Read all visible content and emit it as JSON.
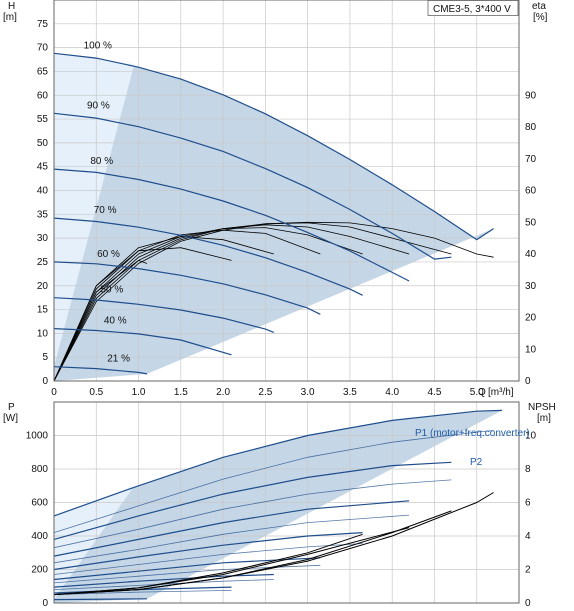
{
  "chart_data": [
    {
      "type": "line",
      "model_label": "CME3-5, 3*400 V",
      "ylabel_left": "H",
      "ylabel_left_unit": "[m]",
      "ylabel_right": "eta",
      "ylabel_right_unit": "[%]",
      "xlabel": "Q",
      "xlabel_unit": "[m³/h]",
      "xlim": [
        0,
        5.5
      ],
      "ylim": [
        0,
        80
      ],
      "y2lim": [
        0,
        120
      ],
      "x_ticks": [
        "0",
        "0.5",
        "1.0",
        "1.5",
        "2.0",
        "2.5",
        "3.0",
        "3.5",
        "4.0",
        "4.5",
        "5.0"
      ],
      "y_ticks": [
        "0",
        "5",
        "10",
        "15",
        "20",
        "25",
        "30",
        "35",
        "40",
        "45",
        "50",
        "55",
        "60",
        "65",
        "70",
        "75"
      ],
      "y2_ticks": [
        "0",
        "10",
        "20",
        "30",
        "40",
        "50",
        "60",
        "70",
        "80",
        "90"
      ],
      "grid": true,
      "colors": {
        "curve": "#1f4e8c",
        "envelope": "#c5d6e6",
        "envelope_light": "#e6f0fa",
        "efficiency": "#000000"
      },
      "speed_curves": [
        {
          "label": "100 %",
          "x": [
            0,
            0.5,
            1.0,
            1.5,
            2.0,
            2.5,
            3.0,
            3.5,
            4.0,
            4.5,
            5.0,
            5.2
          ],
          "y": [
            68.8,
            67.8,
            65.9,
            63.4,
            60.1,
            56.1,
            51.5,
            46.5,
            41.2,
            35.6,
            29.7,
            32.0
          ]
        },
        {
          "label": "90 %",
          "x": [
            0,
            0.5,
            1.0,
            1.5,
            2.0,
            2.5,
            3.0,
            3.5,
            4.0,
            4.5,
            4.7
          ],
          "y": [
            56.2,
            55.2,
            53.4,
            51.0,
            48.2,
            44.6,
            40.6,
            36.0,
            31.0,
            25.6,
            26.0
          ]
        },
        {
          "label": "80 %",
          "x": [
            0,
            0.5,
            1.0,
            1.5,
            2.0,
            2.5,
            3.0,
            3.5,
            4.0,
            4.2
          ],
          "y": [
            44.5,
            43.8,
            42.3,
            40.3,
            37.8,
            34.8,
            31.2,
            27.3,
            22.8,
            21.0
          ]
        },
        {
          "label": "70 %",
          "x": [
            0,
            0.5,
            1.0,
            1.5,
            2.0,
            2.5,
            3.0,
            3.5,
            3.65
          ],
          "y": [
            34.2,
            33.5,
            32.3,
            30.6,
            28.5,
            25.9,
            22.8,
            19.3,
            18.0
          ]
        },
        {
          "label": "60 %",
          "x": [
            0,
            0.5,
            1.0,
            1.5,
            2.0,
            2.5,
            3.0,
            3.15
          ],
          "y": [
            25.0,
            24.6,
            23.6,
            22.2,
            20.4,
            18.1,
            15.3,
            14.0
          ]
        },
        {
          "label": "50 %",
          "x": [
            0,
            0.5,
            1.0,
            1.5,
            2.0,
            2.5,
            2.6
          ],
          "y": [
            17.5,
            17.0,
            16.1,
            14.9,
            13.2,
            10.9,
            10.2
          ]
        },
        {
          "label": "40 %",
          "x": [
            0,
            0.5,
            1.0,
            1.5,
            2.1
          ],
          "y": [
            11.0,
            10.6,
            9.9,
            8.6,
            5.5
          ]
        },
        {
          "label": "21 %",
          "x": [
            0,
            0.5,
            1.0,
            1.1
          ],
          "y": [
            3.0,
            2.6,
            1.8,
            1.5
          ]
        }
      ],
      "efficiency_curves": [
        {
          "x": [
            0,
            0.5,
            1.0,
            1.5,
            2.0,
            2.5,
            3.0,
            3.5,
            4.0,
            4.5,
            5.0,
            5.2
          ],
          "y": [
            0,
            25,
            37,
            44,
            47.5,
            49.5,
            50,
            49.8,
            48,
            45,
            40,
            39
          ]
        },
        {
          "x": [
            0,
            0.5,
            1.0,
            1.5,
            2.0,
            2.5,
            3.0,
            3.5,
            4.0,
            4.7
          ],
          "y": [
            0,
            26,
            38,
            44.5,
            48,
            49.5,
            49.8,
            48.5,
            45,
            40
          ]
        },
        {
          "x": [
            0,
            0.5,
            1.0,
            1.5,
            2.0,
            2.5,
            3.0,
            3.5,
            4.2
          ],
          "y": [
            0,
            27,
            39,
            45,
            48,
            49.2,
            48.5,
            45.5,
            40
          ]
        },
        {
          "x": [
            0,
            0.5,
            1.0,
            1.5,
            2.0,
            2.5,
            3.0,
            3.65
          ],
          "y": [
            0,
            28,
            40,
            45.5,
            48,
            48.3,
            46,
            40
          ]
        },
        {
          "x": [
            0,
            0.5,
            1.0,
            1.5,
            2.0,
            2.5,
            3.15
          ],
          "y": [
            0,
            29,
            41,
            46,
            47.5,
            46.5,
            40
          ]
        },
        {
          "x": [
            0,
            0.5,
            1.0,
            1.5,
            2.0,
            2.6
          ],
          "y": [
            0,
            30,
            42,
            45.5,
            44.5,
            40
          ]
        },
        {
          "x": [
            0,
            0.5,
            1.0,
            1.5,
            2.1
          ],
          "y": [
            0,
            30,
            41,
            42,
            38
          ]
        },
        {
          "x": [
            0,
            0.5,
            1.0,
            1.1
          ],
          "y": [
            0,
            28,
            38,
            37
          ]
        }
      ]
    },
    {
      "type": "line",
      "ylabel_left": "P",
      "ylabel_left_unit": "[W]",
      "ylabel_right": "NPSH",
      "ylabel_right_unit": "[m]",
      "xlim": [
        0,
        5.5
      ],
      "ylim": [
        0,
        1200
      ],
      "y2lim": [
        0,
        12
      ],
      "y_ticks": [
        "0",
        "200",
        "400",
        "600",
        "800",
        "1000"
      ],
      "y2_ticks": [
        "0",
        "2",
        "4",
        "6",
        "8",
        "10"
      ],
      "grid": true,
      "series_labels": [
        "P1 (motor+freq.converter)",
        "P2"
      ],
      "colors": {
        "curve": "#1f4e8c",
        "envelope": "#c5d6e6",
        "npsh": "#000000",
        "label": "#1f5ca8"
      },
      "p1_curves": [
        {
          "x": [
            0,
            1.0,
            2.0,
            3.0,
            4.0,
            5.0,
            5.3
          ],
          "y": [
            520,
            700,
            870,
            1000,
            1090,
            1145,
            1150
          ]
        },
        {
          "x": [
            0,
            1.0,
            2.0,
            3.0,
            4.0,
            4.7
          ],
          "y": [
            380,
            520,
            650,
            750,
            820,
            840
          ]
        },
        {
          "x": [
            0,
            1.0,
            2.0,
            3.0,
            4.2
          ],
          "y": [
            280,
            380,
            480,
            560,
            610
          ]
        },
        {
          "x": [
            0,
            1.0,
            2.0,
            3.0,
            3.65
          ],
          "y": [
            200,
            275,
            345,
            400,
            420
          ]
        },
        {
          "x": [
            0,
            1.0,
            2.0,
            3.15
          ],
          "y": [
            140,
            190,
            240,
            270
          ]
        },
        {
          "x": [
            0,
            1.0,
            2.0,
            2.6
          ],
          "y": [
            95,
            130,
            160,
            170
          ]
        },
        {
          "x": [
            0,
            1.0,
            2.1
          ],
          "y": [
            60,
            80,
            95
          ]
        },
        {
          "x": [
            0,
            1.1
          ],
          "y": [
            20,
            25
          ]
        }
      ],
      "p2_curves": [
        {
          "x": [
            0,
            1.0,
            2.0,
            3.0,
            4.0,
            5.0,
            5.2
          ],
          "y": [
            420,
            580,
            740,
            870,
            960,
            1020,
            1030
          ]
        },
        {
          "x": [
            0,
            1.0,
            2.0,
            3.0,
            4.0,
            4.7
          ],
          "y": [
            330,
            440,
            560,
            650,
            710,
            735
          ]
        },
        {
          "x": [
            0,
            1.0,
            2.0,
            3.0,
            4.2
          ],
          "y": [
            240,
            320,
            410,
            480,
            525
          ]
        },
        {
          "x": [
            0,
            1.0,
            2.0,
            3.0,
            3.65
          ],
          "y": [
            170,
            230,
            290,
            335,
            355
          ]
        },
        {
          "x": [
            0,
            1.0,
            2.0,
            3.15
          ],
          "y": [
            120,
            160,
            200,
            225
          ]
        },
        {
          "x": [
            0,
            1.0,
            2.0,
            2.6
          ],
          "y": [
            80,
            105,
            130,
            140
          ]
        },
        {
          "x": [
            0,
            1.0,
            2.1
          ],
          "y": [
            50,
            65,
            75
          ]
        }
      ],
      "npsh_curves": [
        {
          "x": [
            0,
            1.0,
            2.0,
            3.0,
            4.0,
            5.0,
            5.2
          ],
          "y": [
            0.5,
            0.8,
            1.5,
            2.5,
            4.0,
            6.0,
            6.6
          ]
        },
        {
          "x": [
            0,
            1.0,
            2.0,
            3.0,
            4.0,
            4.7
          ],
          "y": [
            0.5,
            0.8,
            1.5,
            2.6,
            4.2,
            5.5
          ]
        },
        {
          "x": [
            0,
            1.0,
            2.0,
            3.0,
            4.2
          ],
          "y": [
            0.5,
            0.9,
            1.7,
            2.9,
            4.5
          ]
        },
        {
          "x": [
            0,
            1.0,
            2.0,
            3.0,
            3.65
          ],
          "y": [
            0.5,
            0.9,
            1.8,
            3.0,
            4.1
          ]
        }
      ]
    }
  ]
}
